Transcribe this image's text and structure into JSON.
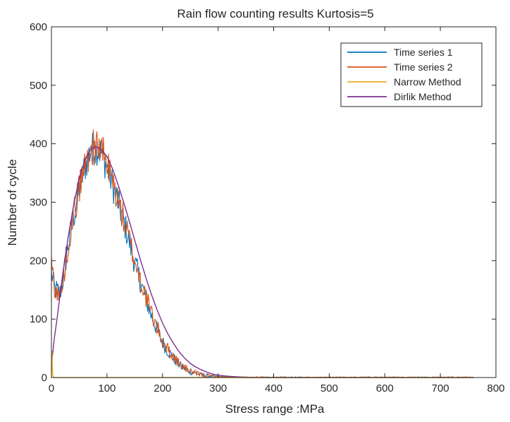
{
  "chart_data": {
    "type": "line",
    "title": "Rain flow counting results Kurtosis=5",
    "xlabel": "Stress range :MPa",
    "ylabel": "Number of cycle",
    "xlim": [
      0,
      800
    ],
    "ylim": [
      0,
      600
    ],
    "xticks": [
      "0",
      "100",
      "200",
      "300",
      "400",
      "500",
      "600",
      "700",
      "800"
    ],
    "yticks": [
      "0",
      "100",
      "200",
      "300",
      "400",
      "500",
      "600"
    ],
    "grid": false,
    "legend_position": "top-right",
    "series": [
      {
        "name": "Time series 1",
        "color": "#0072BD",
        "style": "noisy",
        "x": [
          0,
          3,
          6,
          10,
          15,
          20,
          25,
          30,
          40,
          50,
          60,
          70,
          80,
          90,
          100,
          110,
          120,
          130,
          140,
          150,
          160,
          170,
          180,
          190,
          200,
          210,
          220,
          230,
          240,
          250,
          260,
          270,
          280,
          290,
          300,
          320,
          340,
          360,
          380,
          400,
          450,
          500,
          550,
          600,
          650,
          700,
          730,
          760
        ],
        "y": [
          180,
          165,
          150,
          150,
          142,
          162,
          195,
          225,
          275,
          322,
          360,
          388,
          395,
          385,
          360,
          330,
          300,
          268,
          233,
          197,
          165,
          135,
          106,
          82,
          60,
          45,
          33,
          22,
          15,
          10,
          7,
          4,
          3,
          2,
          1,
          1,
          0,
          0,
          0,
          0,
          0,
          0,
          0,
          0,
          0,
          0,
          0,
          0
        ]
      },
      {
        "name": "Time series 2",
        "color": "#D95319",
        "style": "noisy",
        "x": [
          0,
          3,
          6,
          10,
          15,
          20,
          25,
          30,
          40,
          50,
          60,
          70,
          80,
          90,
          100,
          110,
          120,
          130,
          140,
          150,
          160,
          170,
          180,
          190,
          200,
          210,
          220,
          230,
          240,
          250,
          260,
          270,
          280,
          290,
          300,
          320,
          340,
          360,
          380,
          400,
          450,
          500,
          550,
          600,
          650,
          700,
          730,
          760
        ],
        "y": [
          195,
          175,
          155,
          145,
          138,
          160,
          195,
          228,
          278,
          325,
          362,
          390,
          398,
          390,
          365,
          335,
          303,
          270,
          236,
          200,
          168,
          138,
          110,
          85,
          63,
          47,
          35,
          24,
          16,
          11,
          7,
          5,
          3,
          2,
          1,
          1,
          0,
          0,
          0,
          0,
          0,
          0,
          0,
          0,
          0,
          0,
          0,
          0
        ]
      },
      {
        "name": "Narrow Method",
        "color": "#EDB120",
        "style": "smooth",
        "x": [
          0,
          1,
          2,
          3,
          5,
          10,
          50,
          100,
          200,
          300,
          400,
          500,
          600,
          700,
          760
        ],
        "y": [
          0,
          45,
          10,
          2,
          0,
          0,
          0,
          0,
          0,
          0,
          0,
          0,
          0,
          0,
          0
        ]
      },
      {
        "name": "Dirlik Method",
        "color": "#7E2F8E",
        "style": "smooth",
        "x": [
          0,
          5,
          10,
          20,
          30,
          40,
          50,
          60,
          70,
          80,
          90,
          100,
          110,
          120,
          130,
          140,
          150,
          160,
          170,
          180,
          190,
          200,
          210,
          220,
          230,
          240,
          250,
          260,
          270,
          280,
          290,
          300,
          320,
          340,
          360,
          400,
          450,
          500,
          600,
          700,
          760
        ],
        "y": [
          20,
          65,
          100,
          175,
          240,
          295,
          340,
          372,
          390,
          395,
          390,
          378,
          357,
          330,
          300,
          268,
          235,
          202,
          171,
          142,
          116,
          93,
          74,
          58,
          44,
          33,
          24,
          18,
          13,
          9,
          6,
          4,
          2,
          1,
          0,
          0,
          0,
          0,
          0,
          0,
          0
        ]
      }
    ]
  }
}
